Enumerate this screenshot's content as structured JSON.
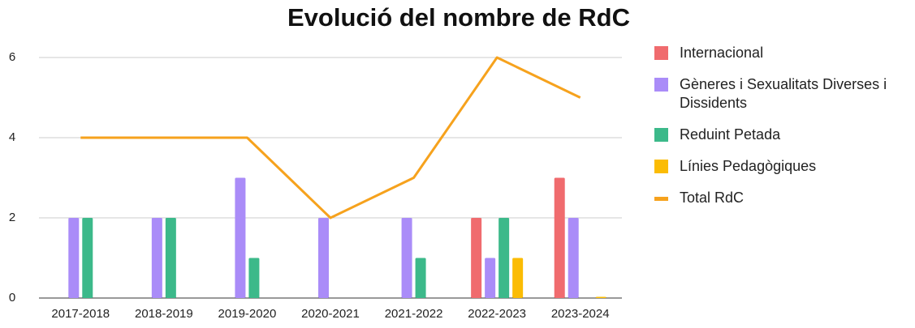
{
  "chart_data": {
    "type": "bar-line",
    "title": "Evolució del nombre de RdC",
    "categories": [
      "2017-2018",
      "2018-2019",
      "2019-2020",
      "2020-2021",
      "2021-2022",
      "2022-2023",
      "2023-2024"
    ],
    "series": [
      {
        "name": "Internacional",
        "type": "bar",
        "color": "#f06b6e",
        "values": [
          null,
          null,
          null,
          null,
          null,
          2,
          3
        ]
      },
      {
        "name": "Gèneres i Sexualitats Diverses i Dissidents",
        "type": "bar",
        "color": "#aa8cf8",
        "values": [
          2,
          2,
          3,
          2,
          2,
          1,
          2
        ]
      },
      {
        "name": "Reduint Petada",
        "type": "bar",
        "color": "#3cb98a",
        "values": [
          2,
          2,
          1,
          null,
          1,
          2,
          null
        ]
      },
      {
        "name": "Línies Pedagògiques",
        "type": "bar",
        "color": "#fbbc04",
        "values": [
          null,
          null,
          null,
          null,
          null,
          1,
          0
        ]
      },
      {
        "name": "Total RdC",
        "type": "line",
        "color": "#f6a21d",
        "values": [
          4,
          4,
          4,
          2,
          3,
          6,
          5
        ]
      }
    ],
    "ylim": [
      0,
      6
    ],
    "yticks": [
      0,
      2,
      4,
      6
    ],
    "grid": true,
    "legend": "right"
  }
}
